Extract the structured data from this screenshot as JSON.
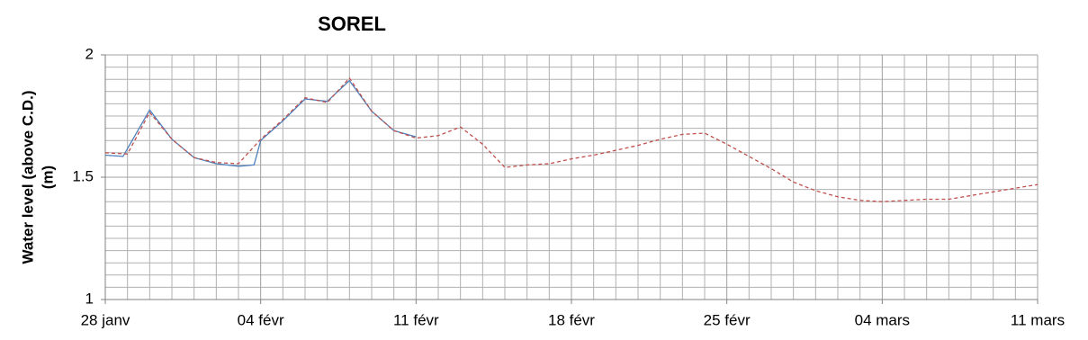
{
  "chart_data": {
    "type": "line",
    "title": "SOREL",
    "ylabel": [
      "Water level (above C.D.)",
      "(m)"
    ],
    "xlim": [
      0,
      42
    ],
    "xticks": [
      {
        "value": 0,
        "label": "28 janv"
      },
      {
        "value": 7,
        "label": "04 févr"
      },
      {
        "value": 14,
        "label": "11 févr"
      },
      {
        "value": 21,
        "label": "18 févr"
      },
      {
        "value": 28,
        "label": "25 févr"
      },
      {
        "value": 35,
        "label": "04 mars"
      },
      {
        "value": 42,
        "label": "11 mars"
      }
    ],
    "ylim": [
      1,
      2
    ],
    "yticks": [
      1,
      1.5,
      2
    ],
    "grid": true,
    "series": [
      {
        "color": "#4f81bd",
        "dash": false,
        "x": [
          0,
          0.8,
          2,
          3,
          4,
          5,
          6,
          6.7,
          7,
          8,
          9,
          10,
          11,
          12,
          13,
          14
        ],
        "values": [
          1.59,
          1.585,
          1.775,
          1.655,
          1.58,
          1.555,
          1.545,
          1.55,
          1.65,
          1.73,
          1.82,
          1.81,
          1.895,
          1.77,
          1.69,
          1.665
        ]
      },
      {
        "color": "#c0504d",
        "dash": true,
        "x": [
          0,
          1,
          2,
          3,
          4,
          5,
          6,
          7,
          8,
          9,
          10,
          11,
          12,
          13,
          14,
          15,
          16,
          17,
          18,
          19,
          20,
          21,
          22,
          23,
          24,
          25,
          26,
          27,
          28,
          29,
          30,
          31,
          32,
          33,
          34,
          35,
          36,
          37,
          38,
          39,
          40,
          41,
          42
        ],
        "values": [
          1.6,
          1.595,
          1.765,
          1.655,
          1.58,
          1.56,
          1.555,
          1.655,
          1.735,
          1.825,
          1.805,
          1.905,
          1.77,
          1.69,
          1.66,
          1.67,
          1.705,
          1.635,
          1.54,
          1.55,
          1.555,
          1.575,
          1.59,
          1.61,
          1.63,
          1.655,
          1.675,
          1.68,
          1.635,
          1.585,
          1.535,
          1.48,
          1.445,
          1.42,
          1.405,
          1.4,
          1.405,
          1.41,
          1.41,
          1.425,
          1.44,
          1.455,
          1.47
        ]
      }
    ]
  }
}
